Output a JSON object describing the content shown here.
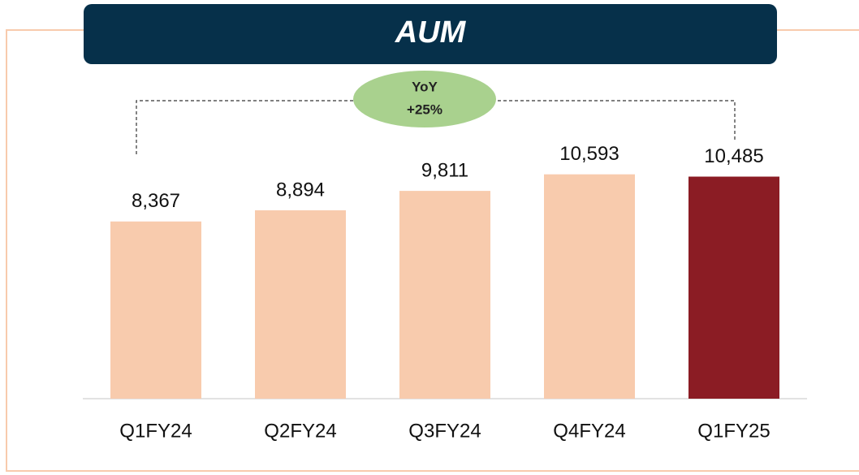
{
  "chart_data": {
    "type": "bar",
    "title": "AUM",
    "categories": [
      "Q1FY24",
      "Q2FY24",
      "Q3FY24",
      "Q4FY24",
      "Q1FY25"
    ],
    "values": [
      8367,
      8894,
      9811,
      10593,
      10485
    ],
    "value_labels": [
      "8,367",
      "8,894",
      "9,811",
      "10,593",
      "10,485"
    ],
    "colors": [
      "#F8CBAD",
      "#F8CBAD",
      "#F8CBAD",
      "#F8CBAD",
      "#8B1C24"
    ],
    "ylim": [
      0,
      12000
    ],
    "annotation": [
      "YoY",
      "+25%"
    ]
  }
}
